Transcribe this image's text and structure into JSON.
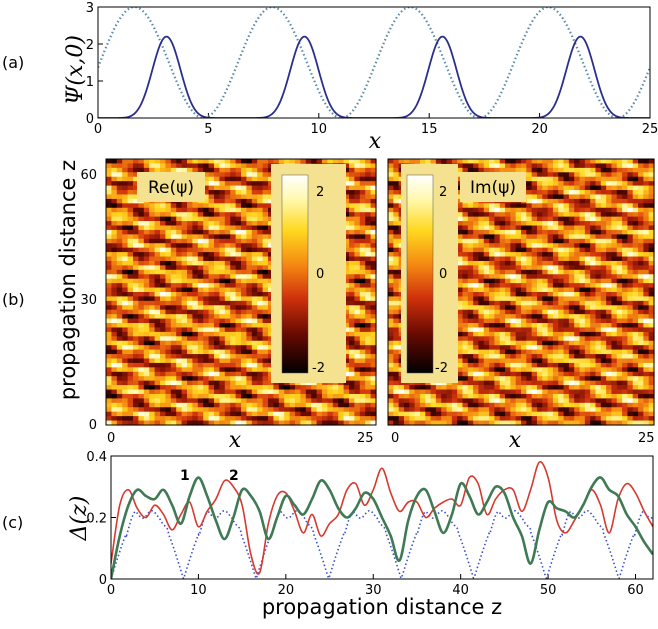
{
  "colors": {
    "blue": "#2b2f8c",
    "green": "#3f7a55",
    "red": "#d63a2e",
    "dotted_teal": "#5a8aa8",
    "dotted_blue": "#3a4fd0",
    "box": "#f5e290"
  },
  "chart_data": [
    {
      "panel": "(a)",
      "type": "line",
      "ylabel": "Ψ(x,0)",
      "xlabel": "x",
      "xlim": [
        0,
        25
      ],
      "ylim": [
        0,
        3
      ],
      "x_ticks": [
        "0",
        "5",
        "10",
        "15",
        "20",
        "25"
      ],
      "y_ticks": [
        "0",
        "1",
        "2",
        "3"
      ],
      "series": [
        {
          "name": "solid",
          "style": "solid",
          "period": 6.25,
          "peak_x": [
            3.1,
            9.35,
            15.6,
            21.85
          ],
          "peak_y": 2.2
        },
        {
          "name": "dotted",
          "style": "dotted",
          "period": 6.25,
          "peak_x": [
            1.65,
            7.9,
            14.15,
            20.4
          ],
          "peak_y": 3.0,
          "min_y": 0.0
        }
      ]
    },
    {
      "panel": "(b)",
      "type": "heatmap",
      "ylabel": "propagation distance z",
      "xlabel": "x",
      "xlim": [
        0,
        25
      ],
      "ylim": [
        0,
        65
      ],
      "x_ticks": [
        "0",
        "25"
      ],
      "y_ticks": [
        "0",
        "30",
        "60"
      ],
      "maps": [
        {
          "label": "Re(ψ)",
          "colorbar_ticks": [
            "2",
            "0",
            "-2"
          ],
          "clim": [
            -2,
            2
          ]
        },
        {
          "label": "Im(ψ)",
          "colorbar_ticks": [
            "2",
            "0",
            "-2"
          ],
          "clim": [
            -2,
            2
          ]
        }
      ]
    },
    {
      "panel": "(c)",
      "type": "line",
      "ylabel": "Δ(z)",
      "xlabel": "propagation distance z",
      "xlim": [
        0,
        62
      ],
      "ylim": [
        0,
        0.4
      ],
      "x_ticks": [
        "0",
        "10",
        "20",
        "30",
        "40",
        "50",
        "60"
      ],
      "y_ticks": [
        "0",
        "0.2",
        "0.4"
      ],
      "curve_labels": [
        "1",
        "2"
      ],
      "series": [
        {
          "name": "1",
          "color": "green",
          "x": [
            0,
            1,
            2,
            3,
            4,
            5,
            6,
            7,
            8,
            9,
            10,
            11,
            12,
            13,
            14,
            15,
            16,
            17,
            18,
            19,
            20,
            21,
            22,
            23,
            24,
            25,
            26,
            27,
            28,
            29,
            30,
            31,
            32,
            33,
            34,
            35,
            36,
            37,
            38,
            39,
            40,
            41,
            42,
            43,
            44,
            45,
            46,
            47,
            48,
            49,
            50,
            51,
            52,
            53,
            54,
            55,
            56,
            57,
            58,
            59,
            60,
            61,
            62
          ],
          "y": [
            0.0,
            0.14,
            0.24,
            0.29,
            0.27,
            0.26,
            0.29,
            0.24,
            0.18,
            0.27,
            0.33,
            0.27,
            0.19,
            0.13,
            0.2,
            0.29,
            0.27,
            0.22,
            0.13,
            0.2,
            0.27,
            0.24,
            0.21,
            0.26,
            0.32,
            0.29,
            0.23,
            0.2,
            0.23,
            0.28,
            0.26,
            0.2,
            0.14,
            0.06,
            0.19,
            0.27,
            0.29,
            0.22,
            0.15,
            0.21,
            0.31,
            0.27,
            0.21,
            0.25,
            0.3,
            0.28,
            0.2,
            0.14,
            0.05,
            0.16,
            0.25,
            0.23,
            0.22,
            0.2,
            0.24,
            0.3,
            0.33,
            0.29,
            0.27,
            0.21,
            0.17,
            0.12,
            0.08
          ]
        },
        {
          "name": "2",
          "color": "red",
          "x": [
            0,
            1,
            2,
            3,
            4,
            5,
            6,
            7,
            8,
            9,
            10,
            11,
            12,
            13,
            14,
            15,
            16,
            17,
            18,
            19,
            20,
            21,
            22,
            23,
            24,
            25,
            26,
            27,
            28,
            29,
            30,
            31,
            32,
            33,
            34,
            35,
            36,
            37,
            38,
            39,
            40,
            41,
            42,
            43,
            44,
            45,
            46,
            47,
            48,
            49,
            50,
            51,
            52,
            53,
            54,
            55,
            56,
            57,
            58,
            59,
            60,
            61,
            62
          ],
          "y": [
            0.05,
            0.24,
            0.29,
            0.23,
            0.2,
            0.24,
            0.21,
            0.16,
            0.21,
            0.25,
            0.17,
            0.22,
            0.26,
            0.32,
            0.3,
            0.24,
            0.08,
            0.02,
            0.18,
            0.27,
            0.28,
            0.22,
            0.15,
            0.21,
            0.14,
            0.18,
            0.21,
            0.29,
            0.31,
            0.24,
            0.29,
            0.36,
            0.28,
            0.22,
            0.25,
            0.25,
            0.2,
            0.23,
            0.25,
            0.26,
            0.24,
            0.33,
            0.31,
            0.21,
            0.26,
            0.29,
            0.29,
            0.22,
            0.29,
            0.38,
            0.33,
            0.19,
            0.15,
            0.19,
            0.24,
            0.29,
            0.24,
            0.15,
            0.26,
            0.31,
            0.28,
            0.22,
            0.17
          ]
        },
        {
          "name": "dotted",
          "color": "dotted_blue",
          "style": "dotted",
          "period": 8.3,
          "peak_y": 0.21
        }
      ]
    }
  ]
}
